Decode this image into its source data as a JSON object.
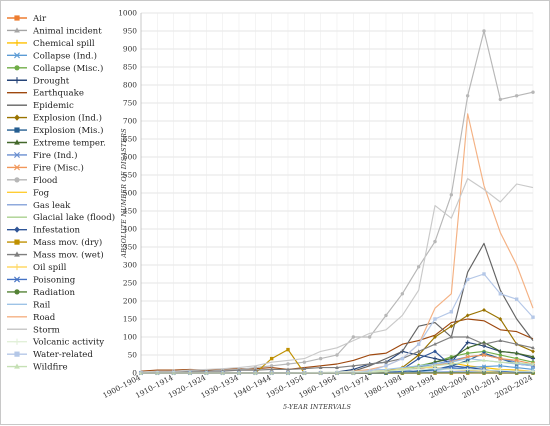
{
  "chart_data": {
    "type": "line",
    "title": "",
    "xlabel": "5-YEAR INTERVALS",
    "ylabel": "ABSOLUTE NUMBER OF DISASTERS",
    "ylim": [
      0,
      1000
    ],
    "ytick_step": 50,
    "grid": true,
    "legend_position": "left",
    "x": [
      "1900–1904",
      "1905–1909",
      "1910–1914",
      "1915–1919",
      "1920–1924",
      "1925–1929",
      "1930–1934",
      "1935–1939",
      "1940–1944",
      "1945–1949",
      "1950–1954",
      "1955–1959",
      "1960–1964",
      "1965–1969",
      "1970–1974",
      "1975–1979",
      "1980–1984",
      "1985–1989",
      "1990–1994",
      "1995–1999",
      "2000–2004",
      "2005–2009",
      "2010–2014",
      "2015–2019",
      "2020–2024"
    ],
    "xtick_labels": [
      "1900–1904",
      "1910–1914",
      "1920–1924",
      "1930–1934",
      "1940–1944",
      "1950–1954",
      "1960–1964",
      "1970–1974",
      "1980–1984",
      "1990–1994",
      "2000–2004",
      "2010–2014",
      "2020–2024"
    ],
    "series": [
      {
        "name": "Air",
        "color": "#ed7d31",
        "marker": "square",
        "values": [
          0,
          0,
          0,
          0,
          0,
          0,
          0,
          0,
          0,
          0,
          0,
          0,
          0,
          0,
          0,
          0,
          0,
          0,
          0,
          0,
          0,
          0,
          0,
          0,
          0
        ]
      },
      {
        "name": "Animal incident",
        "color": "#a5a5a5",
        "marker": "triangle",
        "values": [
          0,
          0,
          0,
          0,
          0,
          0,
          0,
          0,
          0,
          0,
          0,
          0,
          0,
          0,
          0,
          0,
          0,
          0,
          0,
          0,
          1,
          1,
          2,
          1,
          1
        ]
      },
      {
        "name": "Chemical spill",
        "color": "#ffc000",
        "marker": "plus",
        "values": [
          0,
          0,
          0,
          0,
          0,
          0,
          0,
          0,
          0,
          0,
          0,
          0,
          0,
          0,
          2,
          5,
          12,
          20,
          25,
          28,
          20,
          15,
          10,
          8,
          5
        ]
      },
      {
        "name": "Collapse (Ind.)",
        "color": "#5b9bd5",
        "marker": "x",
        "values": [
          0,
          0,
          0,
          0,
          0,
          0,
          0,
          0,
          0,
          0,
          0,
          0,
          0,
          0,
          0,
          0,
          2,
          5,
          8,
          12,
          15,
          18,
          20,
          15,
          10
        ]
      },
      {
        "name": "Collapse (Misc.)",
        "color": "#70ad47",
        "marker": "circle",
        "values": [
          0,
          0,
          0,
          0,
          0,
          0,
          0,
          0,
          0,
          0,
          0,
          0,
          1,
          2,
          3,
          5,
          10,
          20,
          30,
          45,
          55,
          60,
          50,
          40,
          30
        ]
      },
      {
        "name": "Drought",
        "color": "#264478",
        "marker": "plus",
        "values": [
          0,
          0,
          2,
          0,
          0,
          0,
          0,
          0,
          0,
          0,
          0,
          0,
          3,
          10,
          25,
          30,
          60,
          50,
          40,
          30,
          85,
          75,
          60,
          55,
          40
        ]
      },
      {
        "name": "Earthquake",
        "color": "#9e480e",
        "marker": "dash",
        "values": [
          5,
          8,
          8,
          10,
          8,
          10,
          12,
          12,
          15,
          10,
          15,
          20,
          25,
          35,
          50,
          55,
          80,
          90,
          105,
          140,
          150,
          145,
          120,
          115,
          95
        ]
      },
      {
        "name": "Epidemic",
        "color": "#636363",
        "marker": "dash",
        "values": [
          0,
          0,
          0,
          0,
          0,
          0,
          0,
          0,
          0,
          0,
          0,
          0,
          2,
          5,
          20,
          40,
          60,
          130,
          140,
          100,
          280,
          360,
          230,
          150,
          90
        ]
      },
      {
        "name": "Explosion (Ind.)",
        "color": "#997300",
        "marker": "diamond",
        "values": [
          0,
          0,
          0,
          0,
          0,
          0,
          0,
          0,
          0,
          0,
          0,
          0,
          0,
          0,
          0,
          5,
          15,
          50,
          100,
          130,
          160,
          175,
          150,
          80,
          60
        ]
      },
      {
        "name": "Explosion (Mis.)",
        "color": "#255e91",
        "marker": "square",
        "values": [
          0,
          0,
          0,
          0,
          0,
          0,
          0,
          0,
          0,
          0,
          0,
          0,
          0,
          0,
          0,
          0,
          2,
          5,
          10,
          20,
          35,
          55,
          40,
          25,
          20
        ]
      },
      {
        "name": "Extreme temper.",
        "color": "#43682b",
        "marker": "triangle",
        "values": [
          0,
          0,
          0,
          0,
          0,
          0,
          0,
          0,
          0,
          0,
          0,
          0,
          0,
          1,
          3,
          5,
          10,
          15,
          30,
          40,
          70,
          85,
          60,
          55,
          45
        ]
      },
      {
        "name": "Fire (Ind.)",
        "color": "#698ed0",
        "marker": "x",
        "values": [
          0,
          0,
          0,
          0,
          0,
          0,
          0,
          0,
          0,
          0,
          0,
          0,
          0,
          0,
          1,
          3,
          8,
          15,
          25,
          35,
          45,
          50,
          40,
          30,
          20
        ]
      },
      {
        "name": "Fire (Misc.)",
        "color": "#f1975a",
        "marker": "x",
        "values": [
          0,
          0,
          0,
          0,
          0,
          0,
          0,
          0,
          0,
          0,
          0,
          0,
          0,
          0,
          0,
          2,
          5,
          12,
          20,
          30,
          45,
          50,
          40,
          35,
          25
        ]
      },
      {
        "name": "Flood",
        "color": "#b7b7b7",
        "marker": "circle",
        "values": [
          0,
          2,
          5,
          5,
          5,
          8,
          10,
          15,
          20,
          25,
          30,
          40,
          50,
          100,
          100,
          160,
          220,
          295,
          365,
          495,
          770,
          950,
          760,
          770,
          780
        ]
      },
      {
        "name": "Fog",
        "color": "#ffcd33",
        "marker": "dash",
        "values": [
          0,
          0,
          0,
          0,
          0,
          0,
          0,
          0,
          0,
          0,
          0,
          0,
          0,
          0,
          0,
          0,
          0,
          0,
          0,
          0,
          0,
          0,
          0,
          0,
          0
        ]
      },
      {
        "name": "Gas leak",
        "color": "#8faadc",
        "marker": "dash",
        "values": [
          0,
          0,
          0,
          0,
          0,
          0,
          0,
          0,
          0,
          0,
          0,
          0,
          0,
          0,
          0,
          0,
          1,
          2,
          3,
          4,
          5,
          4,
          3,
          2,
          1
        ]
      },
      {
        "name": "Glacial lake (flood)",
        "color": "#a9d18e",
        "marker": "dash",
        "values": [
          0,
          0,
          0,
          0,
          0,
          0,
          0,
          0,
          0,
          0,
          0,
          0,
          0,
          0,
          0,
          0,
          0,
          0,
          0,
          0,
          1,
          1,
          2,
          2,
          2
        ]
      },
      {
        "name": "Infestation",
        "color": "#2f5597",
        "marker": "diamond",
        "values": [
          0,
          0,
          0,
          0,
          0,
          0,
          0,
          0,
          0,
          0,
          0,
          0,
          0,
          0,
          0,
          0,
          10,
          40,
          60,
          20,
          15,
          10,
          5,
          3,
          2
        ]
      },
      {
        "name": "Mass mov. (dry)",
        "color": "#bf9000",
        "marker": "square",
        "values": [
          0,
          0,
          0,
          0,
          0,
          0,
          0,
          0,
          40,
          65,
          0,
          0,
          0,
          0,
          0,
          0,
          0,
          0,
          0,
          0,
          0,
          0,
          0,
          0,
          0
        ]
      },
      {
        "name": "Mass mov. (wet)",
        "color": "#7f7f7f",
        "marker": "triangle",
        "values": [
          2,
          3,
          5,
          5,
          5,
          5,
          8,
          8,
          10,
          10,
          12,
          15,
          15,
          20,
          25,
          30,
          40,
          60,
          80,
          100,
          100,
          80,
          90,
          80,
          70
        ]
      },
      {
        "name": "Oil spill",
        "color": "#ffd966",
        "marker": "plus",
        "values": [
          0,
          0,
          0,
          0,
          0,
          0,
          0,
          0,
          0,
          0,
          0,
          0,
          0,
          0,
          5,
          10,
          12,
          15,
          15,
          10,
          8,
          5,
          3,
          2,
          1
        ]
      },
      {
        "name": "Poisoning",
        "color": "#4472c4",
        "marker": "x",
        "values": [
          0,
          0,
          0,
          0,
          0,
          0,
          0,
          0,
          0,
          0,
          0,
          0,
          0,
          0,
          0,
          0,
          5,
          10,
          12,
          15,
          10,
          8,
          5,
          3,
          2
        ]
      },
      {
        "name": "Radiation",
        "color": "#548235",
        "marker": "circle",
        "values": [
          0,
          0,
          0,
          0,
          0,
          0,
          0,
          0,
          0,
          0,
          0,
          0,
          0,
          0,
          0,
          0,
          0,
          0,
          1,
          1,
          1,
          0,
          0,
          0,
          0
        ]
      },
      {
        "name": "Rail",
        "color": "#9dc3e6",
        "marker": "dash",
        "values": [
          0,
          0,
          0,
          0,
          0,
          0,
          0,
          0,
          0,
          0,
          0,
          0,
          2,
          5,
          8,
          10,
          15,
          20,
          25,
          30,
          40,
          35,
          30,
          25,
          20
        ]
      },
      {
        "name": "Road",
        "color": "#f4b183",
        "marker": "dash",
        "values": [
          0,
          0,
          0,
          0,
          0,
          0,
          0,
          0,
          0,
          0,
          0,
          0,
          1,
          5,
          10,
          20,
          40,
          80,
          180,
          220,
          720,
          520,
          390,
          300,
          180
        ]
      },
      {
        "name": "Storm",
        "color": "#c9c9c9",
        "marker": "dash",
        "values": [
          3,
          5,
          5,
          8,
          10,
          12,
          15,
          20,
          30,
          35,
          40,
          60,
          70,
          90,
          110,
          120,
          160,
          230,
          465,
          430,
          540,
          510,
          475,
          525,
          515
        ]
      },
      {
        "name": "Volcanic activity",
        "color": "#e2f0d9",
        "marker": "plus",
        "values": [
          0,
          0,
          0,
          0,
          0,
          0,
          0,
          0,
          0,
          0,
          1,
          2,
          3,
          4,
          5,
          5,
          8,
          10,
          12,
          10,
          10,
          8,
          8,
          5,
          5
        ]
      },
      {
        "name": "Water-related",
        "color": "#b4c7e7",
        "marker": "square",
        "values": [
          0,
          0,
          0,
          0,
          0,
          0,
          0,
          0,
          0,
          0,
          0,
          0,
          0,
          0,
          5,
          20,
          40,
          80,
          150,
          170,
          260,
          275,
          220,
          205,
          155
        ]
      },
      {
        "name": "Wildfire",
        "color": "#c5e0b4",
        "marker": "triangle",
        "values": [
          0,
          0,
          0,
          0,
          0,
          0,
          0,
          0,
          0,
          0,
          0,
          0,
          0,
          0,
          2,
          5,
          10,
          15,
          20,
          25,
          30,
          35,
          30,
          28,
          25
        ]
      }
    ]
  }
}
